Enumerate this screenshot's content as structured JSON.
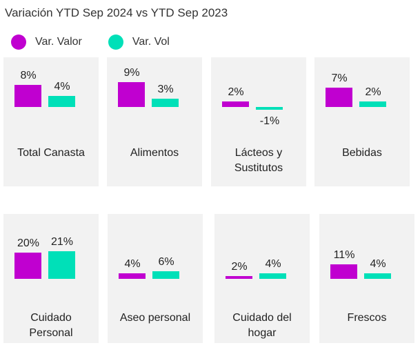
{
  "chart_data": {
    "type": "bar",
    "title": "Variación YTD Sep 2024 vs YTD Sep 2023",
    "legend_placement": "top-left",
    "grid": false,
    "series_names": [
      "Var. Valor",
      "Var. Vol"
    ],
    "colors": {
      "valor": "#c000d0",
      "vol": "#00e0b8"
    },
    "panels": [
      {
        "category": "Total Canasta",
        "valor": 8,
        "vol": 4,
        "valor_label": "8%",
        "vol_label": "4%"
      },
      {
        "category": "Alimentos",
        "valor": 9,
        "vol": 3,
        "valor_label": "9%",
        "vol_label": "3%"
      },
      {
        "category": "Lácteos y Sustitutos",
        "valor": 2,
        "vol": -1,
        "valor_label": "2%",
        "vol_label": "-1%"
      },
      {
        "category": "Bebidas",
        "valor": 7,
        "vol": 2,
        "valor_label": "7%",
        "vol_label": "2%"
      },
      {
        "category": "Cuidado Personal",
        "valor": 20,
        "vol": 21,
        "valor_label": "20%",
        "vol_label": "21%"
      },
      {
        "category": "Aseo personal",
        "valor": 4,
        "vol": 6,
        "valor_label": "4%",
        "vol_label": "6%"
      },
      {
        "category": "Cuidado del hogar",
        "valor": 2,
        "vol": 4,
        "valor_label": "2%",
        "vol_label": "4%"
      },
      {
        "category": "Frescos",
        "valor": 11,
        "vol": 4,
        "valor_label": "11%",
        "vol_label": "4%"
      }
    ]
  }
}
